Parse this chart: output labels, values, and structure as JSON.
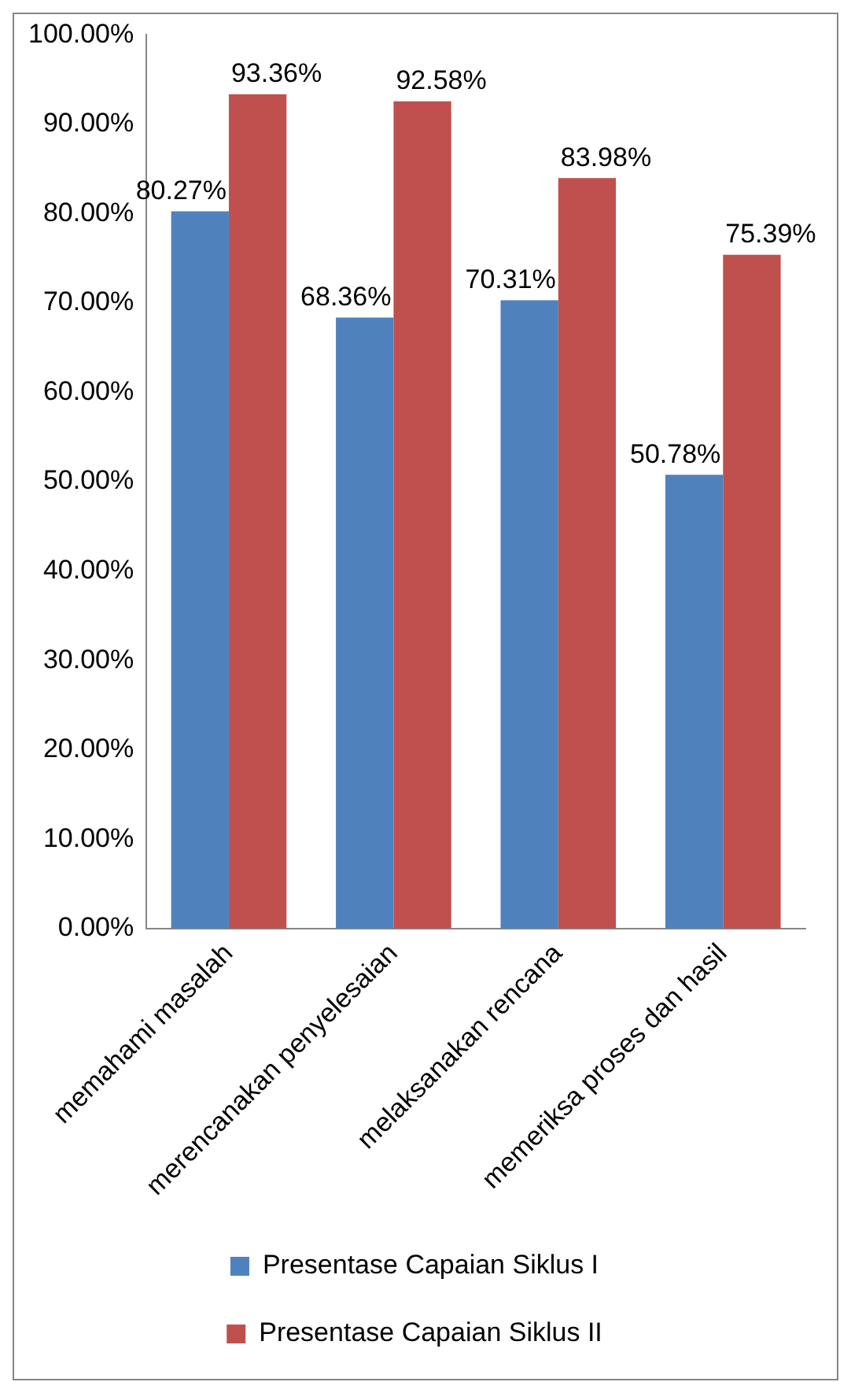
{
  "chart_data": {
    "type": "bar",
    "categories": [
      "memahami masalah",
      "merencanakan penyelesaian",
      "melaksanakan rencana",
      "memeriksa proses dan hasil"
    ],
    "series": [
      {
        "name": "Presentase Capaian Siklus I",
        "color": "#4f81bd",
        "values": [
          80.27,
          68.36,
          70.31,
          50.78
        ],
        "value_labels": [
          "80.27%",
          "68.36%",
          "70.31%",
          "50.78%"
        ]
      },
      {
        "name": "Presentase Capaian Siklus II",
        "color": "#c0504d",
        "values": [
          93.36,
          92.58,
          83.98,
          75.39
        ],
        "value_labels": [
          "93.36%",
          "92.58%",
          "83.98%",
          "75.39%"
        ]
      }
    ],
    "ylim": [
      0,
      100
    ],
    "yticks": [
      {
        "value": 0,
        "label": "0.00%"
      },
      {
        "value": 10,
        "label": "10.00%"
      },
      {
        "value": 20,
        "label": "20.00%"
      },
      {
        "value": 30,
        "label": "30.00%"
      },
      {
        "value": 40,
        "label": "40.00%"
      },
      {
        "value": 50,
        "label": "50.00%"
      },
      {
        "value": 60,
        "label": "60.00%"
      },
      {
        "value": 70,
        "label": "70.00%"
      },
      {
        "value": 80,
        "label": "80.00%"
      },
      {
        "value": 90,
        "label": "90.00%"
      },
      {
        "value": 100,
        "label": "100.00%"
      }
    ],
    "grid": false,
    "legend": "bottom"
  }
}
